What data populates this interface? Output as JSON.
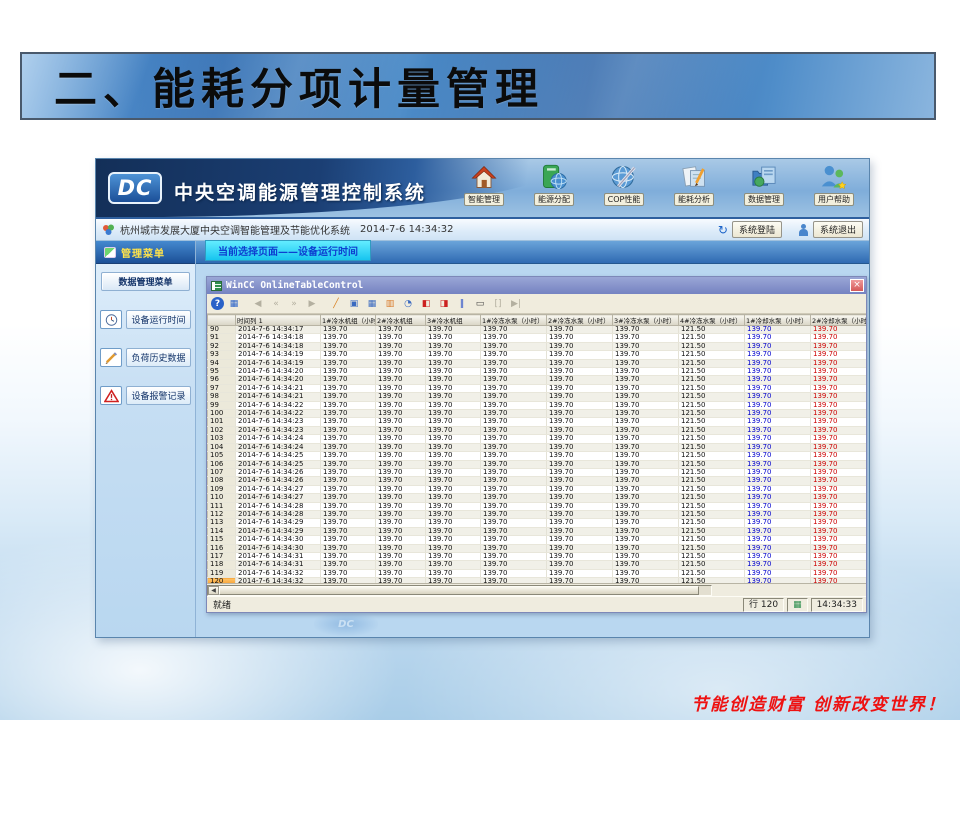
{
  "slide": {
    "title": "二、能耗分项计量管理",
    "slogan": "节能创造财富 创新改变世界！"
  },
  "app": {
    "logo_text": "DC",
    "title": "中央空调能源管理控制系统",
    "nav": [
      {
        "id": "smart-management",
        "label": "智能管理",
        "icon": "home-icon"
      },
      {
        "id": "energy-distribution",
        "label": "能源分配",
        "icon": "energy-book-icon"
      },
      {
        "id": "cop-performance",
        "label": "COP性能",
        "icon": "globe-pen-icon"
      },
      {
        "id": "energy-analysis",
        "label": "能耗分析",
        "icon": "doc-pencil-icon"
      },
      {
        "id": "data-management",
        "label": "数据管理",
        "icon": "folder-data-icon"
      },
      {
        "id": "user-help",
        "label": "用户帮助",
        "icon": "users-icon"
      }
    ],
    "statusbar": {
      "system_name": "杭州城市发展大厦中央空调智能管理及节能优化系统",
      "datetime": "2014-7-6 14:34:32",
      "login_label": "系统登陆",
      "logout_label": "系统退出"
    },
    "sidebar": {
      "header": "管理菜单",
      "menu_header": "数据管理菜单",
      "items": [
        {
          "id": "device-runtime",
          "label": "设备运行时间",
          "icon": "clock-icon"
        },
        {
          "id": "load-history",
          "label": "负荷历史数据",
          "icon": "pencil-icon"
        },
        {
          "id": "device-alarms",
          "label": "设备报警记录",
          "icon": "alert-icon"
        }
      ]
    },
    "tab_label": "当前选择页面——设备运行时间"
  },
  "wincc": {
    "window_title": "WinCC OnlineTableControl",
    "toolbar": [
      {
        "name": "help",
        "disabled": false
      },
      {
        "name": "configuration",
        "disabled": false
      },
      {
        "name": "first-record",
        "disabled": true
      },
      {
        "name": "previous-page",
        "disabled": true
      },
      {
        "name": "next-page",
        "disabled": true
      },
      {
        "name": "last-record",
        "disabled": true
      },
      {
        "name": "edit",
        "disabled": false
      },
      {
        "name": "copy",
        "disabled": false
      },
      {
        "name": "select-columns",
        "disabled": false
      },
      {
        "name": "statistics",
        "disabled": false
      },
      {
        "name": "time-selection",
        "disabled": false
      },
      {
        "name": "start-stop-update",
        "disabled": false
      },
      {
        "name": "export-data",
        "disabled": false
      },
      {
        "name": "pause",
        "disabled": false
      },
      {
        "name": "print",
        "disabled": false
      },
      {
        "name": "select-time-range",
        "disabled": true
      },
      {
        "name": "jump-to-end",
        "disabled": true
      }
    ],
    "status": {
      "ready": "就绪",
      "row_label": "行",
      "row_value": "120",
      "time": "14:34:33"
    }
  },
  "table": {
    "headers": [
      "",
      "时间列 1",
      "1#冷水机组（小时）",
      "2#冷水机组",
      "3#冷水机组",
      "1#冷冻水泵（小时）",
      "2#冷冻水泵（小时）",
      "3#冷冻水泵（小时）",
      "4#冷冻水泵（小时）",
      "1#冷却水泵（小时）",
      "2#冷却水泵（小时）"
    ],
    "highlighted_row": "120",
    "value_colors": {
      "7": "#0000cc",
      "8": "#cc0000"
    },
    "rows": [
      {
        "num": "90",
        "time": "2014-7-6 14:34:17",
        "values": [
          "139.70",
          "139.70",
          "139.70",
          "139.70",
          "139.70",
          "139.70",
          "121.50",
          "139.70",
          "139.70"
        ]
      },
      {
        "num": "91",
        "time": "2014-7-6 14:34:18",
        "values": [
          "139.70",
          "139.70",
          "139.70",
          "139.70",
          "139.70",
          "139.70",
          "121.50",
          "139.70",
          "139.70"
        ]
      },
      {
        "num": "92",
        "time": "2014-7-6 14:34:18",
        "values": [
          "139.70",
          "139.70",
          "139.70",
          "139.70",
          "139.70",
          "139.70",
          "121.50",
          "139.70",
          "139.70"
        ]
      },
      {
        "num": "93",
        "time": "2014-7-6 14:34:19",
        "values": [
          "139.70",
          "139.70",
          "139.70",
          "139.70",
          "139.70",
          "139.70",
          "121.50",
          "139.70",
          "139.70"
        ]
      },
      {
        "num": "94",
        "time": "2014-7-6 14:34:19",
        "values": [
          "139.70",
          "139.70",
          "139.70",
          "139.70",
          "139.70",
          "139.70",
          "121.50",
          "139.70",
          "139.70"
        ]
      },
      {
        "num": "95",
        "time": "2014-7-6 14:34:20",
        "values": [
          "139.70",
          "139.70",
          "139.70",
          "139.70",
          "139.70",
          "139.70",
          "121.50",
          "139.70",
          "139.70"
        ]
      },
      {
        "num": "96",
        "time": "2014-7-6 14:34:20",
        "values": [
          "139.70",
          "139.70",
          "139.70",
          "139.70",
          "139.70",
          "139.70",
          "121.50",
          "139.70",
          "139.70"
        ]
      },
      {
        "num": "97",
        "time": "2014-7-6 14:34:21",
        "values": [
          "139.70",
          "139.70",
          "139.70",
          "139.70",
          "139.70",
          "139.70",
          "121.50",
          "139.70",
          "139.70"
        ]
      },
      {
        "num": "98",
        "time": "2014-7-6 14:34:21",
        "values": [
          "139.70",
          "139.70",
          "139.70",
          "139.70",
          "139.70",
          "139.70",
          "121.50",
          "139.70",
          "139.70"
        ]
      },
      {
        "num": "99",
        "time": "2014-7-6 14:34:22",
        "values": [
          "139.70",
          "139.70",
          "139.70",
          "139.70",
          "139.70",
          "139.70",
          "121.50",
          "139.70",
          "139.70"
        ]
      },
      {
        "num": "100",
        "time": "2014-7-6 14:34:22",
        "values": [
          "139.70",
          "139.70",
          "139.70",
          "139.70",
          "139.70",
          "139.70",
          "121.50",
          "139.70",
          "139.70"
        ]
      },
      {
        "num": "101",
        "time": "2014-7-6 14:34:23",
        "values": [
          "139.70",
          "139.70",
          "139.70",
          "139.70",
          "139.70",
          "139.70",
          "121.50",
          "139.70",
          "139.70"
        ]
      },
      {
        "num": "102",
        "time": "2014-7-6 14:34:23",
        "values": [
          "139.70",
          "139.70",
          "139.70",
          "139.70",
          "139.70",
          "139.70",
          "121.50",
          "139.70",
          "139.70"
        ]
      },
      {
        "num": "103",
        "time": "2014-7-6 14:34:24",
        "values": [
          "139.70",
          "139.70",
          "139.70",
          "139.70",
          "139.70",
          "139.70",
          "121.50",
          "139.70",
          "139.70"
        ]
      },
      {
        "num": "104",
        "time": "2014-7-6 14:34:24",
        "values": [
          "139.70",
          "139.70",
          "139.70",
          "139.70",
          "139.70",
          "139.70",
          "121.50",
          "139.70",
          "139.70"
        ]
      },
      {
        "num": "105",
        "time": "2014-7-6 14:34:25",
        "values": [
          "139.70",
          "139.70",
          "139.70",
          "139.70",
          "139.70",
          "139.70",
          "121.50",
          "139.70",
          "139.70"
        ]
      },
      {
        "num": "106",
        "time": "2014-7-6 14:34:25",
        "values": [
          "139.70",
          "139.70",
          "139.70",
          "139.70",
          "139.70",
          "139.70",
          "121.50",
          "139.70",
          "139.70"
        ]
      },
      {
        "num": "107",
        "time": "2014-7-6 14:34:26",
        "values": [
          "139.70",
          "139.70",
          "139.70",
          "139.70",
          "139.70",
          "139.70",
          "121.50",
          "139.70",
          "139.70"
        ]
      },
      {
        "num": "108",
        "time": "2014-7-6 14:34:26",
        "values": [
          "139.70",
          "139.70",
          "139.70",
          "139.70",
          "139.70",
          "139.70",
          "121.50",
          "139.70",
          "139.70"
        ]
      },
      {
        "num": "109",
        "time": "2014-7-6 14:34:27",
        "values": [
          "139.70",
          "139.70",
          "139.70",
          "139.70",
          "139.70",
          "139.70",
          "121.50",
          "139.70",
          "139.70"
        ]
      },
      {
        "num": "110",
        "time": "2014-7-6 14:34:27",
        "values": [
          "139.70",
          "139.70",
          "139.70",
          "139.70",
          "139.70",
          "139.70",
          "121.50",
          "139.70",
          "139.70"
        ]
      },
      {
        "num": "111",
        "time": "2014-7-6 14:34:28",
        "values": [
          "139.70",
          "139.70",
          "139.70",
          "139.70",
          "139.70",
          "139.70",
          "121.50",
          "139.70",
          "139.70"
        ]
      },
      {
        "num": "112",
        "time": "2014-7-6 14:34:28",
        "values": [
          "139.70",
          "139.70",
          "139.70",
          "139.70",
          "139.70",
          "139.70",
          "121.50",
          "139.70",
          "139.70"
        ]
      },
      {
        "num": "113",
        "time": "2014-7-6 14:34:29",
        "values": [
          "139.70",
          "139.70",
          "139.70",
          "139.70",
          "139.70",
          "139.70",
          "121.50",
          "139.70",
          "139.70"
        ]
      },
      {
        "num": "114",
        "time": "2014-7-6 14:34:29",
        "values": [
          "139.70",
          "139.70",
          "139.70",
          "139.70",
          "139.70",
          "139.70",
          "121.50",
          "139.70",
          "139.70"
        ]
      },
      {
        "num": "115",
        "time": "2014-7-6 14:34:30",
        "values": [
          "139.70",
          "139.70",
          "139.70",
          "139.70",
          "139.70",
          "139.70",
          "121.50",
          "139.70",
          "139.70"
        ]
      },
      {
        "num": "116",
        "time": "2014-7-6 14:34:30",
        "values": [
          "139.70",
          "139.70",
          "139.70",
          "139.70",
          "139.70",
          "139.70",
          "121.50",
          "139.70",
          "139.70"
        ]
      },
      {
        "num": "117",
        "time": "2014-7-6 14:34:31",
        "values": [
          "139.70",
          "139.70",
          "139.70",
          "139.70",
          "139.70",
          "139.70",
          "121.50",
          "139.70",
          "139.70"
        ]
      },
      {
        "num": "118",
        "time": "2014-7-6 14:34:31",
        "values": [
          "139.70",
          "139.70",
          "139.70",
          "139.70",
          "139.70",
          "139.70",
          "121.50",
          "139.70",
          "139.70"
        ]
      },
      {
        "num": "119",
        "time": "2014-7-6 14:34:32",
        "values": [
          "139.70",
          "139.70",
          "139.70",
          "139.70",
          "139.70",
          "139.70",
          "121.50",
          "139.70",
          "139.70"
        ]
      },
      {
        "num": "120",
        "time": "2014-7-6 14:34:32",
        "values": [
          "139.70",
          "139.70",
          "139.70",
          "139.70",
          "139.70",
          "139.70",
          "121.50",
          "139.70",
          "139.70"
        ]
      }
    ]
  }
}
